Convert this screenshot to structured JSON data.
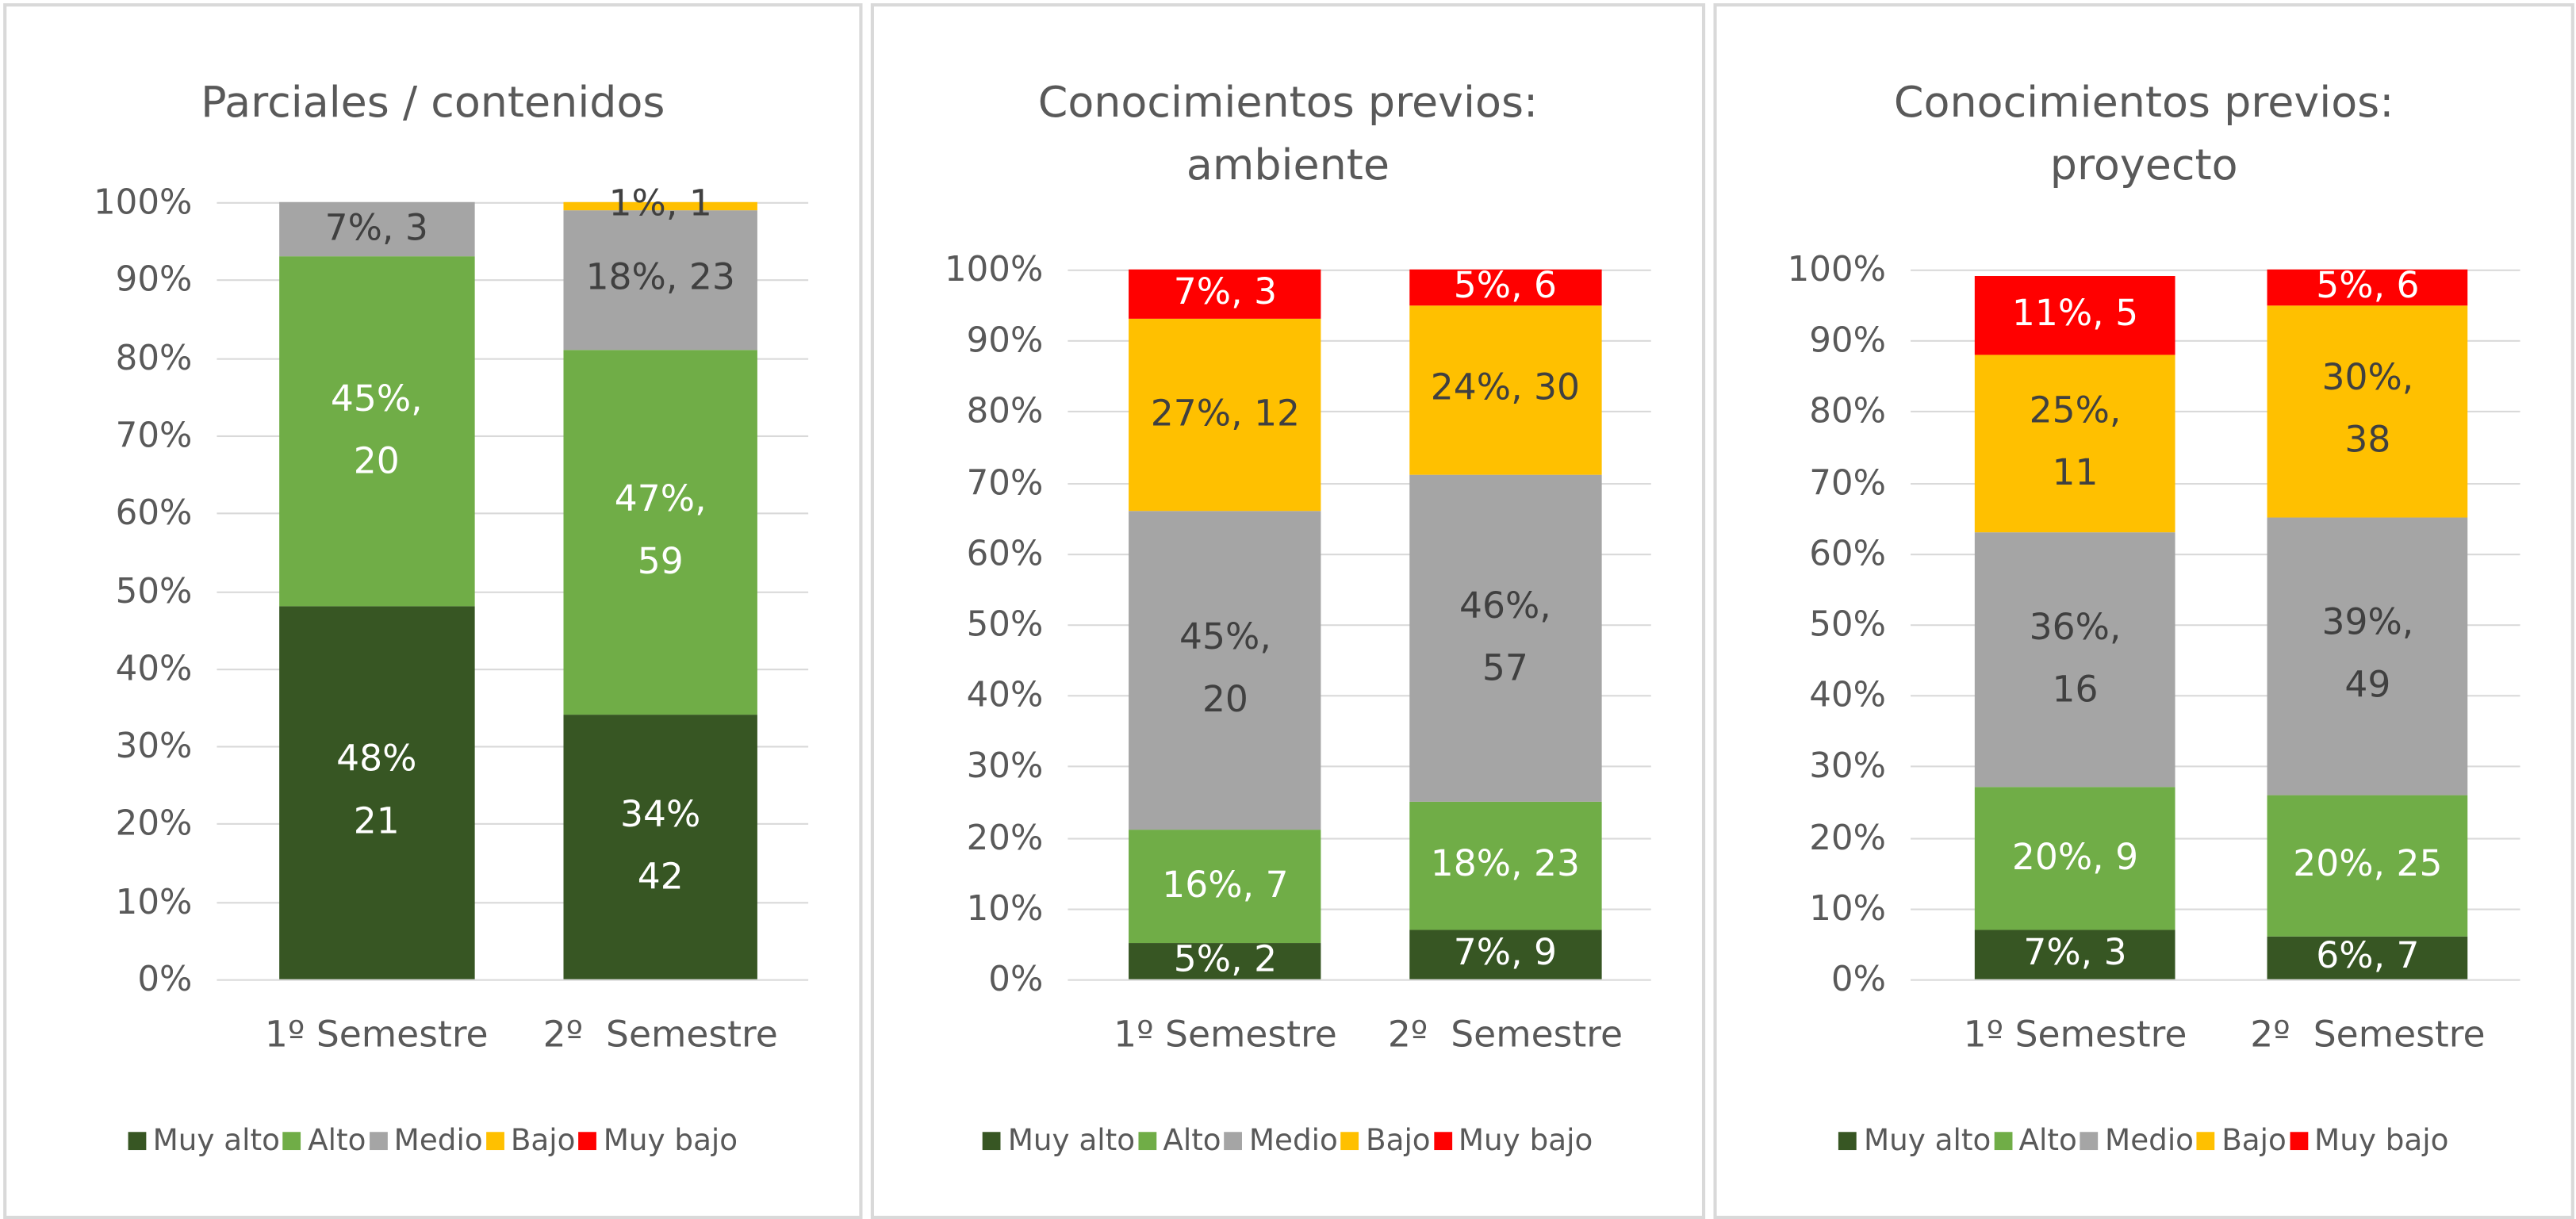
{
  "chart_data": [
    {
      "type": "bar",
      "stacked": true,
      "title": "Parciales / contenidos",
      "categories": [
        "1º Semestre",
        "2º  Semestre"
      ],
      "ylim": [
        0,
        100
      ],
      "yticks": [
        {
          "value": 0,
          "label": "0%"
        },
        {
          "value": 10,
          "label": "10%"
        },
        {
          "value": 20,
          "label": "20%"
        },
        {
          "value": 30,
          "label": "30%"
        },
        {
          "value": 40,
          "label": "40%"
        },
        {
          "value": 50,
          "label": "50%"
        },
        {
          "value": 60,
          "label": "60%"
        },
        {
          "value": 70,
          "label": "70%"
        },
        {
          "value": 80,
          "label": "80%"
        },
        {
          "value": 90,
          "label": "90%"
        },
        {
          "value": 100,
          "label": "100%"
        }
      ],
      "grid": true,
      "legend": "bottom",
      "series": [
        {
          "name": "Muy alto",
          "color": "#375623",
          "values": [
            48,
            34
          ],
          "value_labels": [
            "48%\n21",
            "34%\n42"
          ]
        },
        {
          "name": "Alto",
          "color": "#70ad47",
          "values": [
            45,
            47
          ],
          "value_labels": [
            "45%,\n20",
            "47%,\n59"
          ]
        },
        {
          "name": "Medio",
          "color": "#a5a5a5",
          "values": [
            7,
            18
          ],
          "value_labels": [
            "7%, 3",
            "18%, 23"
          ]
        },
        {
          "name": "Bajo",
          "color": "#ffc000",
          "values": [
            0,
            1
          ],
          "value_labels": [
            null,
            "1%, 1"
          ]
        },
        {
          "name": "Muy bajo",
          "color": "#ff0000",
          "values": [
            0,
            0
          ],
          "value_labels": [
            null,
            null
          ]
        }
      ]
    },
    {
      "type": "bar",
      "stacked": true,
      "title": "Conocimientos previos:\nambiente",
      "categories": [
        "1º Semestre",
        "2º  Semestre"
      ],
      "ylim": [
        0,
        100
      ],
      "yticks": [
        {
          "value": 0,
          "label": "0%"
        },
        {
          "value": 10,
          "label": "10%"
        },
        {
          "value": 20,
          "label": "20%"
        },
        {
          "value": 30,
          "label": "30%"
        },
        {
          "value": 40,
          "label": "40%"
        },
        {
          "value": 50,
          "label": "50%"
        },
        {
          "value": 60,
          "label": "60%"
        },
        {
          "value": 70,
          "label": "70%"
        },
        {
          "value": 80,
          "label": "80%"
        },
        {
          "value": 90,
          "label": "90%"
        },
        {
          "value": 100,
          "label": "100%"
        }
      ],
      "grid": true,
      "legend": "bottom",
      "series": [
        {
          "name": "Muy alto",
          "color": "#375623",
          "values": [
            5,
            7
          ],
          "value_labels": [
            "5%, 2",
            "7%, 9"
          ]
        },
        {
          "name": "Alto",
          "color": "#70ad47",
          "values": [
            16,
            18
          ],
          "value_labels": [
            "16%, 7",
            "18%, 23"
          ]
        },
        {
          "name": "Medio",
          "color": "#a5a5a5",
          "values": [
            45,
            46
          ],
          "value_labels": [
            "45%,\n20",
            "46%,\n57"
          ]
        },
        {
          "name": "Bajo",
          "color": "#ffc000",
          "values": [
            27,
            24
          ],
          "value_labels": [
            "27%, 12",
            "24%, 30"
          ]
        },
        {
          "name": "Muy bajo",
          "color": "#ff0000",
          "values": [
            7,
            5
          ],
          "value_labels": [
            "7%, 3",
            "5%, 6"
          ]
        }
      ]
    },
    {
      "type": "bar",
      "stacked": true,
      "title": "Conocimientos previos:\nproyecto",
      "categories": [
        "1º Semestre",
        "2º  Semestre"
      ],
      "ylim": [
        0,
        100
      ],
      "yticks": [
        {
          "value": 0,
          "label": "0%"
        },
        {
          "value": 10,
          "label": "10%"
        },
        {
          "value": 20,
          "label": "20%"
        },
        {
          "value": 30,
          "label": "30%"
        },
        {
          "value": 40,
          "label": "40%"
        },
        {
          "value": 50,
          "label": "50%"
        },
        {
          "value": 60,
          "label": "60%"
        },
        {
          "value": 70,
          "label": "70%"
        },
        {
          "value": 80,
          "label": "80%"
        },
        {
          "value": 90,
          "label": "90%"
        },
        {
          "value": 100,
          "label": "100%"
        }
      ],
      "grid": true,
      "legend": "bottom",
      "series": [
        {
          "name": "Muy alto",
          "color": "#375623",
          "values": [
            7,
            6
          ],
          "value_labels": [
            "7%, 3",
            "6%, 7"
          ]
        },
        {
          "name": "Alto",
          "color": "#70ad47",
          "values": [
            20,
            20
          ],
          "value_labels": [
            "20%, 9",
            "20%, 25"
          ]
        },
        {
          "name": "Medio",
          "color": "#a5a5a5",
          "values": [
            36,
            39
          ],
          "value_labels": [
            "36%,\n16",
            "39%,\n49"
          ]
        },
        {
          "name": "Bajo",
          "color": "#ffc000",
          "values": [
            25,
            30
          ],
          "value_labels": [
            "25%,\n11",
            "30%,\n38"
          ]
        },
        {
          "name": "Muy bajo",
          "color": "#ff0000",
          "values": [
            11,
            5
          ],
          "value_labels": [
            "11%, 5",
            "5%, 6"
          ]
        }
      ]
    }
  ]
}
